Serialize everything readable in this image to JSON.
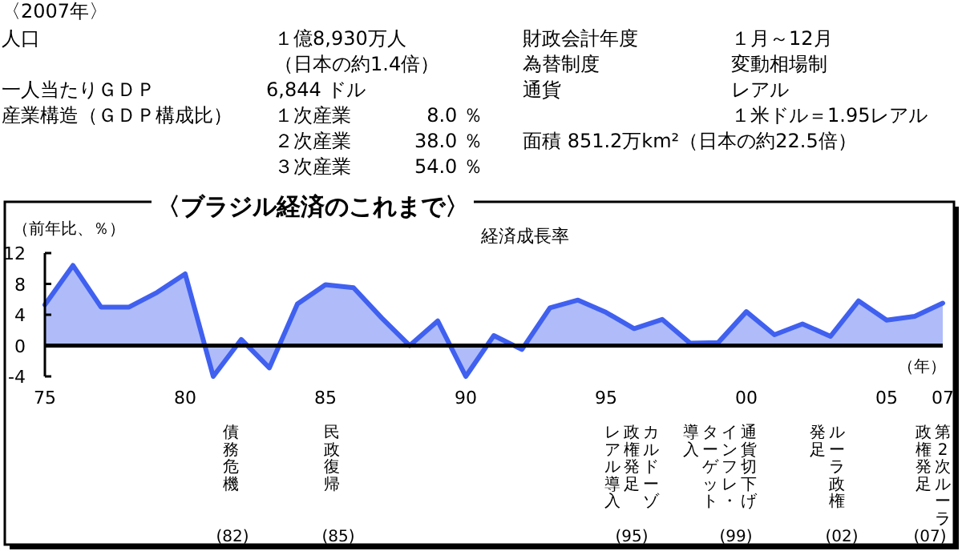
{
  "chart_data": {
    "type": "area",
    "title": "〈ブラジル経済のこれまで〉",
    "ylabel": "（前年比、％）",
    "xlabel": "（年）",
    "x": [
      1975,
      1976,
      1977,
      1978,
      1979,
      1980,
      1981,
      1982,
      1983,
      1984,
      1985,
      1986,
      1987,
      1988,
      1989,
      1990,
      1991,
      1992,
      1993,
      1994,
      1995,
      1996,
      1997,
      1998,
      1999,
      2000,
      2001,
      2002,
      2003,
      2004,
      2005,
      2006,
      2007
    ],
    "series": [
      {
        "name": "経済成長率",
        "color": "#4060f0",
        "values": [
          5.3,
          10.4,
          5.0,
          5.0,
          6.9,
          9.3,
          -4.0,
          0.8,
          -2.9,
          5.4,
          7.9,
          7.5,
          3.6,
          0.0,
          3.2,
          -4.0,
          1.3,
          -0.5,
          4.9,
          5.9,
          4.3,
          2.2,
          3.4,
          0.3,
          0.4,
          4.4,
          1.4,
          2.8,
          1.2,
          5.8,
          3.3,
          3.8,
          5.5
        ]
      }
    ],
    "xlim": [
      1975,
      2007
    ],
    "ylim": [
      -4,
      12
    ],
    "xticks": [
      {
        "value": 1975,
        "label": "75"
      },
      {
        "value": 1980,
        "label": "80"
      },
      {
        "value": 1985,
        "label": "85"
      },
      {
        "value": 1990,
        "label": "90"
      },
      {
        "value": 1995,
        "label": "95"
      },
      {
        "value": 2000,
        "label": "00"
      },
      {
        "value": 2005,
        "label": "05"
      },
      {
        "value": 2007,
        "label": "07"
      }
    ],
    "yticks": [
      -4,
      0,
      4,
      8,
      12
    ],
    "annotations": [
      "〈2007年〉",
      "人口",
      "１億8,930万人",
      "（日本の約1.4倍）",
      "財政会計年度",
      "１月～12月",
      "為替制度",
      "変動相場制",
      "一人当たりＧＤＰ",
      "6,844 ドル",
      "通貨",
      "レアル",
      "産業構造（ＧＤＰ構成比）",
      "１次産業",
      "8.0 ％",
      "１米ドル＝1.95レアル",
      "２次産業",
      "38.0 ％",
      "面積 851.2万km²（日本の約22.5倍）",
      "３次産業",
      "54.0 ％",
      "債務危機",
      "(82)",
      "民政復帰",
      "(85)",
      "カルドーゾ",
      "政権発足",
      "レアル導入",
      "(95)",
      "通貨切下げ",
      "インフレ・",
      "ターゲット",
      "導入",
      "(99)",
      "ルーラ政権",
      "発足",
      "(02)",
      "第2次ルーラ",
      "政権発足",
      "(07)"
    ]
  }
}
